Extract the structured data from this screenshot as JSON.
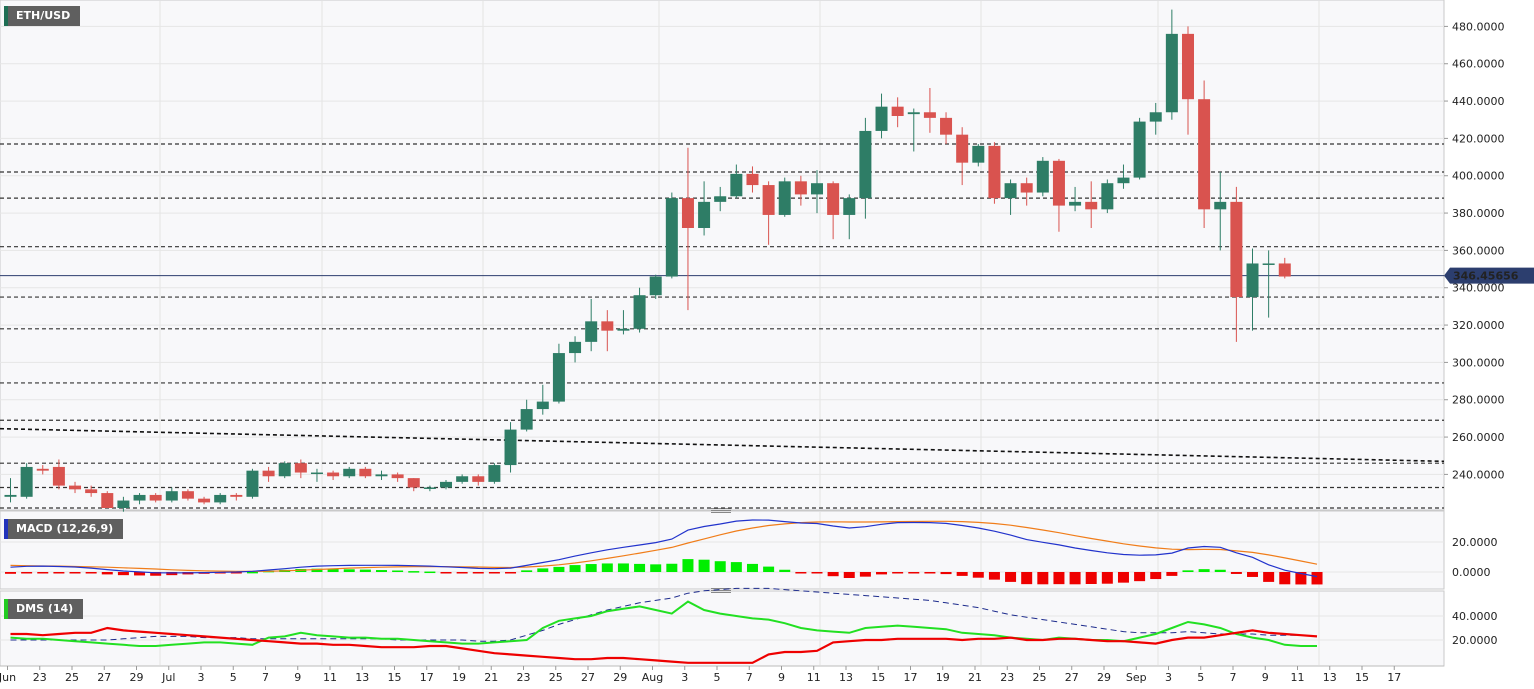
{
  "chart_data": [
    {
      "type": "candlestick",
      "title": "ETH/USD",
      "current_price_label": "346.45656",
      "y_axis_ticks": [
        "480.0000",
        "460.0000",
        "440.0000",
        "420.0000",
        "400.0000",
        "380.0000",
        "360.0000",
        "340.0000",
        "320.0000",
        "300.0000",
        "280.0000",
        "260.0000",
        "240.0000"
      ],
      "ylim": [
        222,
        492
      ],
      "current_price": 346.46,
      "horizontal_levels": [
        417,
        402,
        388,
        362,
        335,
        318,
        289,
        269,
        246,
        233,
        222
      ],
      "trendline": {
        "start": {
          "x": "Jun 21",
          "y": 264.5
        },
        "end": {
          "x": "Sep 17",
          "y": 247
        }
      },
      "x_axis_ticks": [
        "Jun",
        "23",
        "25",
        "27",
        "29",
        "Jul",
        "3",
        "5",
        "7",
        "9",
        "11",
        "13",
        "15",
        "17",
        "19",
        "21",
        "23",
        "25",
        "27",
        "29",
        "Aug",
        "3",
        "5",
        "7",
        "9",
        "11",
        "13",
        "15",
        "17",
        "19",
        "21",
        "23",
        "25",
        "27",
        "29",
        "Sep",
        "3",
        "5",
        "7",
        "9",
        "11",
        "13",
        "15",
        "17"
      ],
      "candles": [
        {
          "d": "Jun 21",
          "o": 228,
          "h": 238,
          "l": 225,
          "c": 229
        },
        {
          "d": "Jun 22",
          "o": 228,
          "h": 246,
          "l": 227,
          "c": 244
        },
        {
          "d": "Jun 23",
          "o": 243,
          "h": 245,
          "l": 240,
          "c": 242
        },
        {
          "d": "Jun 24",
          "o": 244,
          "h": 248,
          "l": 232,
          "c": 234
        },
        {
          "d": "Jun 25",
          "o": 234,
          "h": 236,
          "l": 230,
          "c": 232
        },
        {
          "d": "Jun 26",
          "o": 232,
          "h": 234,
          "l": 228,
          "c": 230
        },
        {
          "d": "Jun 27",
          "o": 230,
          "h": 231,
          "l": 222,
          "c": 222
        },
        {
          "d": "Jun 28",
          "o": 222,
          "h": 228,
          "l": 220,
          "c": 226
        },
        {
          "d": "Jun 29",
          "o": 226,
          "h": 230,
          "l": 224,
          "c": 229
        },
        {
          "d": "Jun 30",
          "o": 229,
          "h": 230,
          "l": 225,
          "c": 226
        },
        {
          "d": "Jul 1",
          "o": 226,
          "h": 233,
          "l": 225,
          "c": 231
        },
        {
          "d": "Jul 2",
          "o": 231,
          "h": 232,
          "l": 226,
          "c": 227
        },
        {
          "d": "Jul 3",
          "o": 227,
          "h": 228,
          "l": 224,
          "c": 225
        },
        {
          "d": "Jul 4",
          "o": 225,
          "h": 230,
          "l": 224,
          "c": 229
        },
        {
          "d": "Jul 5",
          "o": 229,
          "h": 230,
          "l": 226,
          "c": 228
        },
        {
          "d": "Jul 6",
          "o": 228,
          "h": 243,
          "l": 227,
          "c": 242
        },
        {
          "d": "Jul 7",
          "o": 242,
          "h": 244,
          "l": 236,
          "c": 239
        },
        {
          "d": "Jul 8",
          "o": 239,
          "h": 247,
          "l": 238,
          "c": 246
        },
        {
          "d": "Jul 9",
          "o": 246,
          "h": 248,
          "l": 238,
          "c": 241
        },
        {
          "d": "Jul 10",
          "o": 241,
          "h": 243,
          "l": 236,
          "c": 241
        },
        {
          "d": "Jul 11",
          "o": 241,
          "h": 242,
          "l": 237,
          "c": 239
        },
        {
          "d": "Jul 12",
          "o": 239,
          "h": 244,
          "l": 238,
          "c": 243
        },
        {
          "d": "Jul 13",
          "o": 243,
          "h": 244,
          "l": 238,
          "c": 239
        },
        {
          "d": "Jul 14",
          "o": 239,
          "h": 242,
          "l": 237,
          "c": 240
        },
        {
          "d": "Jul 15",
          "o": 240,
          "h": 241,
          "l": 236,
          "c": 238
        },
        {
          "d": "Jul 16",
          "o": 238,
          "h": 238,
          "l": 231,
          "c": 233
        },
        {
          "d": "Jul 17",
          "o": 233,
          "h": 234,
          "l": 231,
          "c": 233
        },
        {
          "d": "Jul 18",
          "o": 233,
          "h": 237,
          "l": 232,
          "c": 236
        },
        {
          "d": "Jul 19",
          "o": 236,
          "h": 240,
          "l": 235,
          "c": 239
        },
        {
          "d": "Jul 20",
          "o": 239,
          "h": 240,
          "l": 234,
          "c": 236
        },
        {
          "d": "Jul 21",
          "o": 236,
          "h": 246,
          "l": 235,
          "c": 245
        },
        {
          "d": "Jul 22",
          "o": 245,
          "h": 268,
          "l": 241,
          "c": 264
        },
        {
          "d": "Jul 23",
          "o": 264,
          "h": 280,
          "l": 263,
          "c": 275
        },
        {
          "d": "Jul 24",
          "o": 275,
          "h": 288,
          "l": 272,
          "c": 279
        },
        {
          "d": "Jul 25",
          "o": 279,
          "h": 310,
          "l": 278,
          "c": 305
        },
        {
          "d": "Jul 26",
          "o": 305,
          "h": 314,
          "l": 300,
          "c": 311
        },
        {
          "d": "Jul 27",
          "o": 311,
          "h": 334,
          "l": 306,
          "c": 322
        },
        {
          "d": "Jul 28",
          "o": 322,
          "h": 328,
          "l": 306,
          "c": 317
        },
        {
          "d": "Jul 29",
          "o": 317,
          "h": 328,
          "l": 315,
          "c": 318
        },
        {
          "d": "Jul 30",
          "o": 318,
          "h": 340,
          "l": 316,
          "c": 336
        },
        {
          "d": "Jul 31",
          "o": 336,
          "h": 347,
          "l": 334,
          "c": 346
        },
        {
          "d": "Aug 1",
          "o": 346,
          "h": 391,
          "l": 345,
          "c": 388
        },
        {
          "d": "Aug 2",
          "o": 388,
          "h": 415,
          "l": 328,
          "c": 372
        },
        {
          "d": "Aug 3",
          "o": 372,
          "h": 397,
          "l": 368,
          "c": 386
        },
        {
          "d": "Aug 4",
          "o": 386,
          "h": 394,
          "l": 381,
          "c": 389
        },
        {
          "d": "Aug 5",
          "o": 389,
          "h": 406,
          "l": 388,
          "c": 401
        },
        {
          "d": "Aug 6",
          "o": 401,
          "h": 405,
          "l": 391,
          "c": 395
        },
        {
          "d": "Aug 7",
          "o": 395,
          "h": 397,
          "l": 363,
          "c": 379
        },
        {
          "d": "Aug 8",
          "o": 379,
          "h": 399,
          "l": 378,
          "c": 397
        },
        {
          "d": "Aug 9",
          "o": 397,
          "h": 400,
          "l": 384,
          "c": 390
        },
        {
          "d": "Aug 10",
          "o": 390,
          "h": 403,
          "l": 380,
          "c": 396
        },
        {
          "d": "Aug 11",
          "o": 396,
          "h": 397,
          "l": 366,
          "c": 379
        },
        {
          "d": "Aug 12",
          "o": 379,
          "h": 390,
          "l": 366,
          "c": 388
        },
        {
          "d": "Aug 13",
          "o": 388,
          "h": 431,
          "l": 377,
          "c": 424
        },
        {
          "d": "Aug 14",
          "o": 424,
          "h": 444,
          "l": 420,
          "c": 437
        },
        {
          "d": "Aug 15",
          "o": 437,
          "h": 442,
          "l": 426,
          "c": 432
        },
        {
          "d": "Aug 16",
          "o": 433,
          "h": 436,
          "l": 413,
          "c": 434
        },
        {
          "d": "Aug 17",
          "o": 434,
          "h": 447,
          "l": 423,
          "c": 431
        },
        {
          "d": "Aug 18",
          "o": 431,
          "h": 434,
          "l": 417,
          "c": 422
        },
        {
          "d": "Aug 19",
          "o": 422,
          "h": 426,
          "l": 395,
          "c": 407
        },
        {
          "d": "Aug 20",
          "o": 407,
          "h": 417,
          "l": 405,
          "c": 416
        },
        {
          "d": "Aug 21",
          "o": 416,
          "h": 418,
          "l": 385,
          "c": 388
        },
        {
          "d": "Aug 22",
          "o": 388,
          "h": 398,
          "l": 379,
          "c": 396
        },
        {
          "d": "Aug 23",
          "o": 396,
          "h": 399,
          "l": 384,
          "c": 391
        },
        {
          "d": "Aug 24",
          "o": 391,
          "h": 410,
          "l": 389,
          "c": 408
        },
        {
          "d": "Aug 25",
          "o": 408,
          "h": 409,
          "l": 370,
          "c": 384
        },
        {
          "d": "Aug 26",
          "o": 384,
          "h": 394,
          "l": 381,
          "c": 386
        },
        {
          "d": "Aug 27",
          "o": 386,
          "h": 397,
          "l": 372,
          "c": 382
        },
        {
          "d": "Aug 28",
          "o": 382,
          "h": 398,
          "l": 380,
          "c": 396
        },
        {
          "d": "Aug 29",
          "o": 396,
          "h": 406,
          "l": 393,
          "c": 399
        },
        {
          "d": "Aug 30",
          "o": 399,
          "h": 431,
          "l": 398,
          "c": 429
        },
        {
          "d": "Aug 31",
          "o": 429,
          "h": 439,
          "l": 422,
          "c": 434
        },
        {
          "d": "Sep 1",
          "o": 434,
          "h": 489,
          "l": 430,
          "c": 476
        },
        {
          "d": "Sep 2",
          "o": 476,
          "h": 480,
          "l": 422,
          "c": 441
        },
        {
          "d": "Sep 3",
          "o": 441,
          "h": 451,
          "l": 372,
          "c": 382
        },
        {
          "d": "Sep 4",
          "o": 382,
          "h": 402,
          "l": 360,
          "c": 386
        },
        {
          "d": "Sep 5",
          "o": 386,
          "h": 394,
          "l": 311,
          "c": 335
        },
        {
          "d": "Sep 6",
          "o": 335,
          "h": 361,
          "l": 317,
          "c": 353
        },
        {
          "d": "Sep 7",
          "o": 353,
          "h": 360,
          "l": 324,
          "c": 353
        },
        {
          "d": "Sep 8",
          "o": 353,
          "h": 356,
          "l": 345,
          "c": 346
        }
      ]
    },
    {
      "type": "line+bar",
      "title": "MACD (12,26,9)",
      "y_axis_ticks": [
        "20.0000",
        "0.0000"
      ],
      "ylim": [
        -10,
        40
      ],
      "macd": [
        3.2,
        3.8,
        3.9,
        3.7,
        3.3,
        2.6,
        1.6,
        0.7,
        0.1,
        -0.5,
        -0.6,
        -0.5,
        -0.4,
        -0.2,
        0.0,
        0.5,
        1.3,
        2.2,
        3.2,
        3.9,
        4.2,
        4.4,
        4.5,
        4.5,
        4.4,
        4.2,
        3.9,
        3.5,
        3.0,
        2.4,
        2.2,
        2.6,
        4.4,
        6.3,
        8.2,
        10.6,
        12.8,
        14.8,
        16.5,
        18.0,
        19.6,
        21.9,
        27.9,
        30.3,
        32.0,
        33.9,
        34.7,
        34.6,
        33.6,
        32.7,
        32.3,
        30.7,
        29.3,
        30.2,
        31.8,
        32.9,
        33.0,
        32.9,
        32.4,
        31.0,
        29.3,
        27.2,
        24.6,
        21.6,
        19.8,
        18.1,
        16.0,
        14.3,
        12.8,
        11.7,
        11.2,
        11.4,
        12.6,
        16.0,
        17.0,
        16.5,
        12.8,
        9.8,
        4.8,
        1.2,
        -1.0,
        -3.1
      ],
      "signal": [
        4.4,
        4.2,
        4.0,
        3.9,
        3.7,
        3.5,
        3.2,
        2.8,
        2.4,
        2.0,
        1.5,
        1.1,
        0.8,
        0.6,
        0.4,
        0.4,
        0.5,
        0.8,
        1.2,
        1.7,
        2.1,
        2.6,
        2.9,
        3.2,
        3.4,
        3.6,
        3.6,
        3.6,
        3.5,
        3.3,
        3.1,
        3.0,
        3.3,
        3.9,
        4.8,
        6.0,
        7.5,
        9.1,
        10.8,
        12.6,
        14.5,
        16.4,
        19.3,
        22.1,
        24.8,
        27.3,
        29.3,
        31.0,
        32.1,
        32.9,
        33.3,
        33.5,
        33.3,
        33.3,
        33.4,
        33.6,
        33.7,
        33.8,
        33.8,
        33.6,
        33.1,
        32.3,
        31.2,
        29.7,
        28.0,
        26.2,
        24.2,
        22.3,
        20.6,
        18.8,
        17.3,
        16.1,
        15.2,
        14.9,
        15.1,
        15.0,
        14.1,
        13.1,
        11.4,
        9.4,
        7.3,
        5.2
      ],
      "histogram": [
        -1.2,
        -0.4,
        -0.1,
        -0.2,
        -0.4,
        -0.9,
        -1.6,
        -2.1,
        -2.3,
        -2.5,
        -2.1,
        -1.6,
        -1.2,
        -0.8,
        -0.4,
        0.1,
        0.8,
        1.4,
        2.0,
        2.2,
        2.1,
        1.8,
        1.6,
        1.3,
        1.0,
        0.6,
        0.3,
        -0.1,
        -0.5,
        -0.9,
        -0.9,
        -0.4,
        1.1,
        2.4,
        3.4,
        4.6,
        5.3,
        5.7,
        5.7,
        5.4,
        5.1,
        5.5,
        8.6,
        8.2,
        7.2,
        6.6,
        5.4,
        3.6,
        1.5,
        -0.2,
        -1.0,
        -2.8,
        -4.0,
        -3.1,
        -1.6,
        -0.7,
        -0.7,
        -0.9,
        -1.4,
        -2.6,
        -3.8,
        -5.1,
        -6.6,
        -8.1,
        -8.2,
        -8.1,
        -8.2,
        -8.0,
        -7.8,
        -7.1,
        -6.1,
        -4.7,
        -2.6,
        1.1,
        1.9,
        1.5,
        -1.3,
        -3.3,
        -6.6,
        -8.2,
        -8.3,
        -8.3
      ]
    },
    {
      "type": "line",
      "title": "DMS (14)",
      "y_axis_ticks": [
        "40.0000",
        "20.0000"
      ],
      "ylim": [
        0,
        60
      ],
      "plus_di": [
        22,
        21,
        21,
        20,
        19,
        18,
        17,
        16,
        15,
        15,
        16,
        17,
        18,
        18,
        17,
        16,
        22,
        23,
        26,
        24,
        23,
        22,
        22,
        21,
        21,
        20,
        19,
        18,
        17,
        17,
        18,
        19,
        20,
        30,
        36,
        38,
        40,
        44,
        46,
        48,
        45,
        42,
        52,
        45,
        42,
        40,
        38,
        37,
        34,
        30,
        28,
        27,
        26,
        30,
        31,
        32,
        31,
        30,
        29,
        26,
        25,
        24,
        22,
        21,
        20,
        22,
        21,
        20,
        20,
        19,
        22,
        25,
        30,
        35,
        33,
        30,
        25,
        22,
        20,
        16,
        15,
        15
      ],
      "minus_di": [
        25,
        25,
        24,
        25,
        26,
        26,
        30,
        28,
        27,
        26,
        25,
        24,
        23,
        22,
        21,
        20,
        19,
        18,
        17,
        17,
        16,
        16,
        15,
        14,
        14,
        14,
        15,
        15,
        13,
        11,
        9,
        8,
        7,
        6,
        5,
        4,
        4,
        5,
        5,
        4,
        3,
        2,
        1,
        1,
        1,
        1,
        1,
        8,
        10,
        10,
        11,
        18,
        19,
        20,
        20,
        21,
        21,
        21,
        21,
        20,
        21,
        21,
        22,
        20,
        20,
        21,
        21,
        20,
        19,
        19,
        18,
        17,
        20,
        22,
        22,
        24,
        26,
        28,
        26,
        25,
        24,
        23
      ],
      "adx": [
        20,
        20,
        20,
        20,
        20,
        20,
        20,
        21,
        22,
        23,
        23,
        23,
        22,
        22,
        22,
        21,
        21,
        21,
        21,
        21,
        21,
        21,
        21,
        21,
        20,
        20,
        20,
        20,
        20,
        19,
        19,
        20,
        24,
        28,
        33,
        37,
        41,
        45,
        48,
        51,
        53,
        55,
        59,
        61,
        62,
        63,
        63,
        63,
        62,
        61,
        60,
        59,
        58,
        57,
        56,
        55,
        54,
        53,
        51,
        49,
        47,
        44,
        41,
        39,
        37,
        35,
        33,
        31,
        29,
        27,
        26,
        26,
        26,
        27,
        26,
        25,
        25,
        25,
        24,
        24,
        24,
        23
      ]
    }
  ]
}
